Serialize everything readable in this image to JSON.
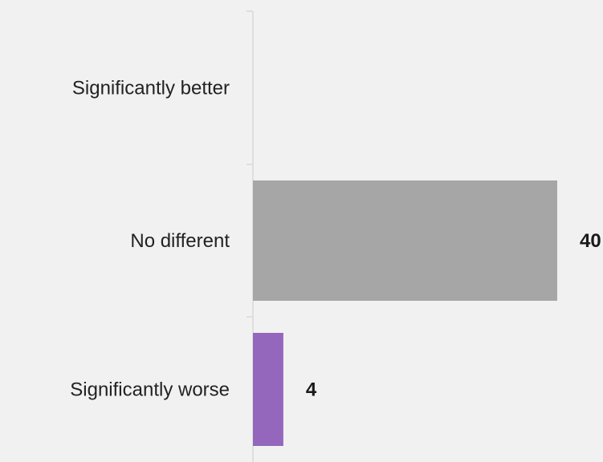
{
  "chart_data": {
    "type": "bar",
    "orientation": "horizontal",
    "categories": [
      "Significantly better",
      "No different",
      "Significantly worse"
    ],
    "values": [
      null,
      40,
      4
    ],
    "data_labels": [
      "",
      "40",
      "4"
    ],
    "colors": [
      "#a6a6a6",
      "#a6a6a6",
      "#9467bd"
    ],
    "xlim": [
      0,
      40
    ],
    "title": "",
    "xlabel": "",
    "ylabel": "",
    "grid": false,
    "legend": "none"
  }
}
